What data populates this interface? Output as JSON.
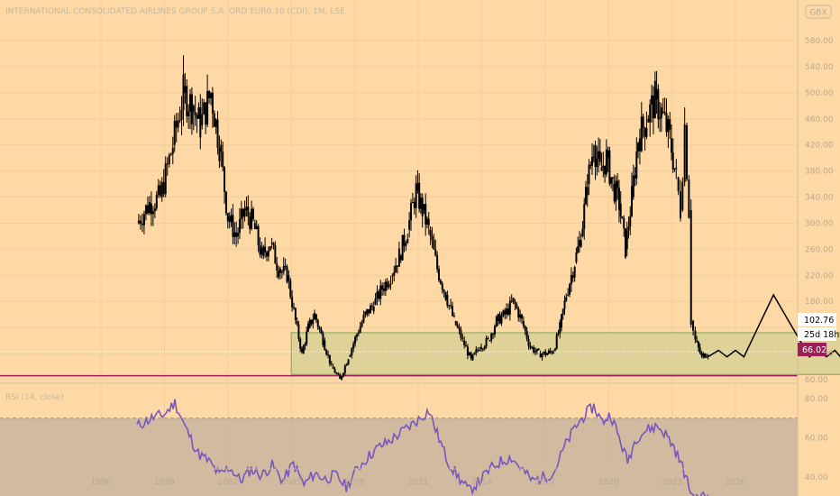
{
  "header": {
    "title": "INTERNATIONAL CONSOLIDATED AIRLINES GROUP S.A. ORD EUR0.10 (CDI), 1M, LSE",
    "currency": "GBX"
  },
  "badges": {
    "last_price": "102.76",
    "countdown": "25d 18h",
    "support_level": "66.02"
  },
  "rsi": {
    "label": "RSI (14, close)",
    "ticks": [
      "80.00",
      "60.00",
      "40.00"
    ]
  },
  "colors": {
    "background": "#fed9a6",
    "candles": "#000000",
    "support_line": "#9c1f57",
    "support_box_fill": "#d9d095",
    "support_box_border": "#7aa655",
    "rsi_line": "#7657bf",
    "rsi_band": "#c9b49e",
    "last_price_badge": "#ffffff",
    "support_badge": "#9c1f57"
  },
  "chart_data": [
    {
      "type": "candlestick",
      "title": "INTERNATIONAL CONSOLIDATED AIRLINES GROUP S.A. ORD EUR0.10 (CDI), 1M, LSE",
      "x_ticks": [
        "1996",
        "1999",
        "2002",
        "2005",
        "2008",
        "2011",
        "2014",
        "2017",
        "2020",
        "2023",
        "2026"
      ],
      "xlim": [
        1994.6,
        2029.3
      ],
      "y_ticks": [
        60,
        100,
        140,
        180,
        220,
        260,
        300,
        340,
        380,
        420,
        460,
        500,
        540,
        580
      ],
      "ylim": [
        40,
        600
      ],
      "close_series": [
        {
          "x": 1997.7,
          "y": 300
        },
        {
          "x": 1998.3,
          "y": 330
        },
        {
          "x": 1998.8,
          "y": 340
        },
        {
          "x": 1999.4,
          "y": 420
        },
        {
          "x": 1999.9,
          "y": 500
        },
        {
          "x": 2000.3,
          "y": 480
        },
        {
          "x": 2000.7,
          "y": 450
        },
        {
          "x": 2001.2,
          "y": 500
        },
        {
          "x": 2001.6,
          "y": 420
        },
        {
          "x": 2002.0,
          "y": 310
        },
        {
          "x": 2002.4,
          "y": 280
        },
        {
          "x": 2002.8,
          "y": 320
        },
        {
          "x": 2003.2,
          "y": 300
        },
        {
          "x": 2003.6,
          "y": 250
        },
        {
          "x": 2004.0,
          "y": 270
        },
        {
          "x": 2004.4,
          "y": 230
        },
        {
          "x": 2004.8,
          "y": 220
        },
        {
          "x": 2005.2,
          "y": 150
        },
        {
          "x": 2005.5,
          "y": 100
        },
        {
          "x": 2005.8,
          "y": 140
        },
        {
          "x": 2006.1,
          "y": 160
        },
        {
          "x": 2006.5,
          "y": 120
        },
        {
          "x": 2006.9,
          "y": 80
        },
        {
          "x": 2007.3,
          "y": 60
        },
        {
          "x": 2007.7,
          "y": 95
        },
        {
          "x": 2008.1,
          "y": 130
        },
        {
          "x": 2008.5,
          "y": 160
        },
        {
          "x": 2008.9,
          "y": 175
        },
        {
          "x": 2009.3,
          "y": 200
        },
        {
          "x": 2009.7,
          "y": 220
        },
        {
          "x": 2010.1,
          "y": 250
        },
        {
          "x": 2010.5,
          "y": 290
        },
        {
          "x": 2010.9,
          "y": 350
        },
        {
          "x": 2011.2,
          "y": 320
        },
        {
          "x": 2011.5,
          "y": 290
        },
        {
          "x": 2011.9,
          "y": 230
        },
        {
          "x": 2012.3,
          "y": 190
        },
        {
          "x": 2012.7,
          "y": 150
        },
        {
          "x": 2013.1,
          "y": 120
        },
        {
          "x": 2013.5,
          "y": 90
        },
        {
          "x": 2013.9,
          "y": 110
        },
        {
          "x": 2014.3,
          "y": 120
        },
        {
          "x": 2014.7,
          "y": 150
        },
        {
          "x": 2015.1,
          "y": 160
        },
        {
          "x": 2015.5,
          "y": 180
        },
        {
          "x": 2015.9,
          "y": 150
        },
        {
          "x": 2016.3,
          "y": 110
        },
        {
          "x": 2016.7,
          "y": 100
        },
        {
          "x": 2017.1,
          "y": 100
        },
        {
          "x": 2017.4,
          "y": 105
        },
        {
          "x": 2017.7,
          "y": 140
        },
        {
          "x": 2018.0,
          "y": 190
        },
        {
          "x": 2018.4,
          "y": 240
        },
        {
          "x": 2018.7,
          "y": 280
        },
        {
          "x": 2019.0,
          "y": 360
        },
        {
          "x": 2019.3,
          "y": 420
        },
        {
          "x": 2019.6,
          "y": 380
        },
        {
          "x": 2019.9,
          "y": 400
        },
        {
          "x": 2020.2,
          "y": 360
        },
        {
          "x": 2020.5,
          "y": 330
        },
        {
          "x": 2020.8,
          "y": 260
        },
        {
          "x": 2021.1,
          "y": 340
        },
        {
          "x": 2021.4,
          "y": 430
        },
        {
          "x": 2021.8,
          "y": 460
        },
        {
          "x": 2022.2,
          "y": 490
        },
        {
          "x": 2022.5,
          "y": 470
        },
        {
          "x": 2022.9,
          "y": 430
        },
        {
          "x": 2023.2,
          "y": 370
        },
        {
          "x": 2023.4,
          "y": 320
        },
        {
          "x": 2023.6,
          "y": 450
        },
        {
          "x": 2023.8,
          "y": 320
        },
        {
          "x": 2023.9,
          "y": 150
        },
        {
          "x": 2024.1,
          "y": 120
        },
        {
          "x": 2024.4,
          "y": 95
        },
        {
          "x": 2024.7,
          "y": 102.76
        }
      ],
      "projection": [
        {
          "x": 2024.7,
          "y": 95
        },
        {
          "x": 2025.2,
          "y": 105
        },
        {
          "x": 2025.6,
          "y": 95
        },
        {
          "x": 2026.0,
          "y": 105
        },
        {
          "x": 2026.4,
          "y": 95
        },
        {
          "x": 2027.8,
          "y": 190
        },
        {
          "x": 2029.5,
          "y": 95
        },
        {
          "x": 2029.9,
          "y": 105
        },
        {
          "x": 2030.3,
          "y": 95
        },
        {
          "x": 2030.7,
          "y": 105
        },
        {
          "x": 2031.1,
          "y": 90
        },
        {
          "x": 2032.1,
          "y": 440
        }
      ],
      "support_zone": {
        "x_from": 2005.0,
        "x_to": 2032.3,
        "y_from": 68,
        "y_to": 132
      },
      "support_level": 66.02,
      "last_price": 102.76
    },
    {
      "type": "line",
      "title": "RSI (14, close)",
      "y_ticks": [
        40,
        60,
        80
      ],
      "ylim": [
        24,
        92
      ],
      "band": [
        30,
        70
      ],
      "series": [
        {
          "values": [
            {
              "x": 1997.7,
              "y": 66
            },
            {
              "x": 1998.4,
              "y": 70
            },
            {
              "x": 1999.0,
              "y": 72
            },
            {
              "x": 1999.5,
              "y": 78
            },
            {
              "x": 2000.0,
              "y": 65
            },
            {
              "x": 2000.6,
              "y": 52
            },
            {
              "x": 2001.1,
              "y": 48
            },
            {
              "x": 2001.6,
              "y": 41
            },
            {
              "x": 2002.1,
              "y": 45
            },
            {
              "x": 2002.6,
              "y": 38
            },
            {
              "x": 2003.1,
              "y": 44
            },
            {
              "x": 2003.6,
              "y": 41
            },
            {
              "x": 2004.1,
              "y": 46
            },
            {
              "x": 2004.6,
              "y": 38
            },
            {
              "x": 2005.1,
              "y": 47
            },
            {
              "x": 2005.6,
              "y": 36
            },
            {
              "x": 2006.1,
              "y": 42
            },
            {
              "x": 2006.6,
              "y": 39
            },
            {
              "x": 2007.1,
              "y": 41
            },
            {
              "x": 2007.6,
              "y": 35
            },
            {
              "x": 2008.1,
              "y": 44
            },
            {
              "x": 2008.6,
              "y": 50
            },
            {
              "x": 2009.1,
              "y": 55
            },
            {
              "x": 2009.6,
              "y": 58
            },
            {
              "x": 2010.1,
              "y": 62
            },
            {
              "x": 2010.6,
              "y": 66
            },
            {
              "x": 2011.1,
              "y": 70
            },
            {
              "x": 2011.5,
              "y": 74
            },
            {
              "x": 2011.9,
              "y": 62
            },
            {
              "x": 2012.4,
              "y": 48
            },
            {
              "x": 2012.9,
              "y": 40
            },
            {
              "x": 2013.4,
              "y": 33
            },
            {
              "x": 2013.9,
              "y": 38
            },
            {
              "x": 2014.4,
              "y": 44
            },
            {
              "x": 2014.9,
              "y": 48
            },
            {
              "x": 2015.4,
              "y": 50
            },
            {
              "x": 2015.9,
              "y": 44
            },
            {
              "x": 2016.4,
              "y": 38
            },
            {
              "x": 2016.9,
              "y": 40
            },
            {
              "x": 2017.4,
              "y": 42
            },
            {
              "x": 2017.9,
              "y": 55
            },
            {
              "x": 2018.4,
              "y": 65
            },
            {
              "x": 2018.9,
              "y": 72
            },
            {
              "x": 2019.3,
              "y": 76
            },
            {
              "x": 2019.7,
              "y": 68
            },
            {
              "x": 2020.1,
              "y": 72
            },
            {
              "x": 2020.5,
              "y": 60
            },
            {
              "x": 2020.9,
              "y": 48
            },
            {
              "x": 2021.3,
              "y": 60
            },
            {
              "x": 2021.8,
              "y": 64
            },
            {
              "x": 2022.3,
              "y": 66
            },
            {
              "x": 2022.7,
              "y": 62
            },
            {
              "x": 2023.1,
              "y": 55
            },
            {
              "x": 2023.5,
              "y": 45
            },
            {
              "x": 2023.8,
              "y": 35
            },
            {
              "x": 2024.1,
              "y": 28
            },
            {
              "x": 2024.4,
              "y": 30
            },
            {
              "x": 2024.7,
              "y": 31
            }
          ]
        }
      ]
    }
  ]
}
